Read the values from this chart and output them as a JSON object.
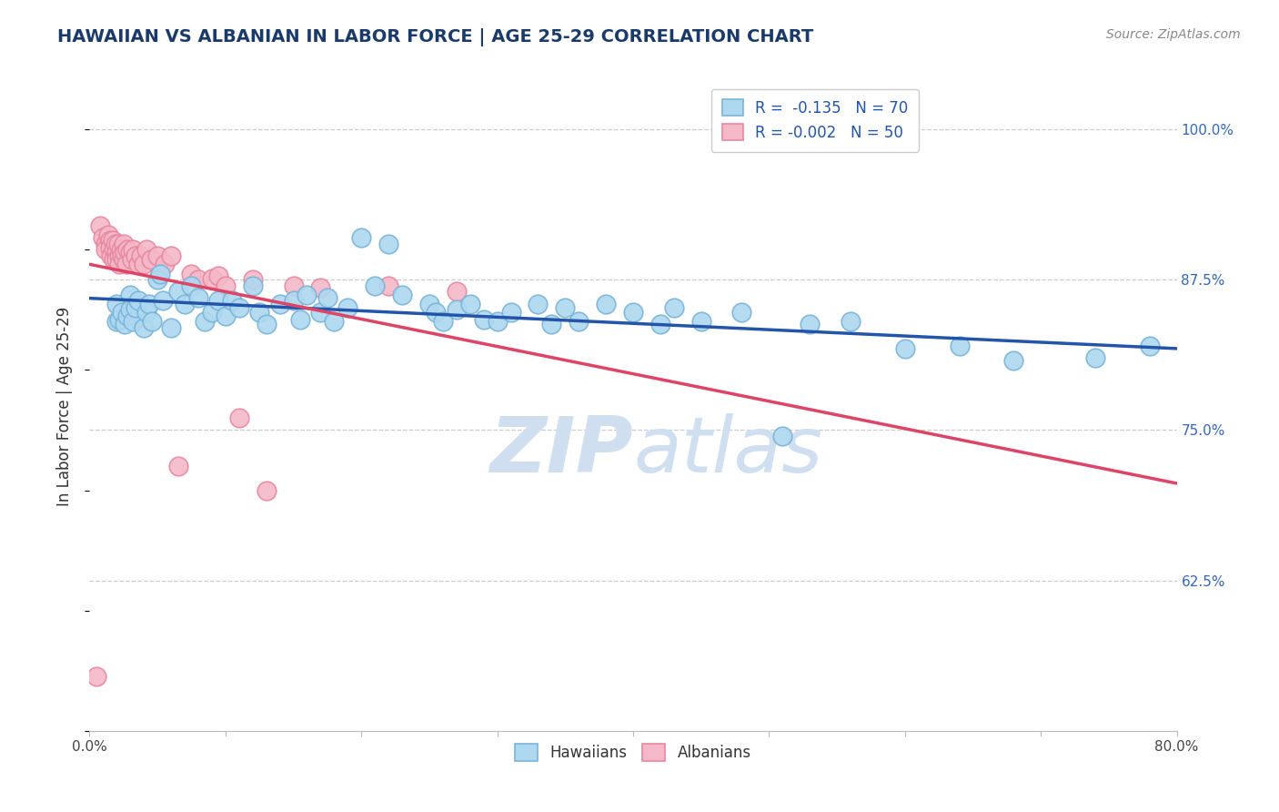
{
  "title": "HAWAIIAN VS ALBANIAN IN LABOR FORCE | AGE 25-29 CORRELATION CHART",
  "source": "Source: ZipAtlas.com",
  "ylabel": "In Labor Force | Age 25-29",
  "x_min": 0.0,
  "x_max": 0.8,
  "y_min": 0.5,
  "y_max": 1.04,
  "x_ticks": [
    0.0,
    0.1,
    0.2,
    0.3,
    0.4,
    0.5,
    0.6,
    0.7,
    0.8
  ],
  "x_tick_labels": [
    "0.0%",
    "",
    "",
    "",
    "",
    "",
    "",
    "",
    "80.0%"
  ],
  "y_ticks": [
    0.625,
    0.75,
    0.875,
    1.0
  ],
  "y_tick_labels": [
    "62.5%",
    "75.0%",
    "87.5%",
    "100.0%"
  ],
  "hawaiian_color": "#add8f0",
  "albanian_color": "#f4b8c8",
  "hawaiian_edge": "#7ab4d8",
  "albanian_edge": "#e888a0",
  "trend_blue": "#2255aa",
  "trend_pink": "#dd4466",
  "legend_label_hawaiian": "R =  -0.135   N = 70",
  "legend_label_albanian": "R = -0.002   N = 50",
  "title_color": "#1a3a6a",
  "source_color": "#888888",
  "axis_label_color": "#333333",
  "tick_color_right": "#3366bb",
  "grid_color": "#cccccc",
  "watermark_color": "#d0dff0",
  "background_color": "#ffffff",
  "hawaiian_x": [
    0.02,
    0.02,
    0.022,
    0.024,
    0.026,
    0.028,
    0.03,
    0.03,
    0.032,
    0.034,
    0.036,
    0.04,
    0.042,
    0.044,
    0.046,
    0.05,
    0.052,
    0.054,
    0.06,
    0.065,
    0.07,
    0.075,
    0.08,
    0.085,
    0.09,
    0.095,
    0.1,
    0.105,
    0.11,
    0.12,
    0.125,
    0.13,
    0.14,
    0.15,
    0.155,
    0.16,
    0.17,
    0.175,
    0.18,
    0.19,
    0.2,
    0.21,
    0.22,
    0.23,
    0.25,
    0.255,
    0.26,
    0.27,
    0.28,
    0.29,
    0.3,
    0.31,
    0.33,
    0.34,
    0.35,
    0.36,
    0.38,
    0.4,
    0.42,
    0.43,
    0.45,
    0.48,
    0.51,
    0.53,
    0.56,
    0.6,
    0.64,
    0.68,
    0.74,
    0.78
  ],
  "hawaiian_y": [
    0.84,
    0.855,
    0.842,
    0.848,
    0.838,
    0.845,
    0.862,
    0.85,
    0.84,
    0.852,
    0.858,
    0.835,
    0.848,
    0.855,
    0.84,
    0.875,
    0.88,
    0.858,
    0.835,
    0.865,
    0.855,
    0.87,
    0.86,
    0.84,
    0.848,
    0.858,
    0.845,
    0.858,
    0.852,
    0.87,
    0.848,
    0.838,
    0.855,
    0.858,
    0.842,
    0.862,
    0.848,
    0.86,
    0.84,
    0.852,
    0.91,
    0.87,
    0.905,
    0.862,
    0.855,
    0.848,
    0.84,
    0.85,
    0.855,
    0.842,
    0.84,
    0.848,
    0.855,
    0.838,
    0.852,
    0.84,
    0.855,
    0.848,
    0.838,
    0.852,
    0.84,
    0.848,
    0.745,
    0.838,
    0.84,
    0.818,
    0.82,
    0.808,
    0.81,
    0.82
  ],
  "albanian_x": [
    0.005,
    0.008,
    0.01,
    0.012,
    0.012,
    0.014,
    0.015,
    0.015,
    0.016,
    0.017,
    0.018,
    0.018,
    0.019,
    0.02,
    0.02,
    0.021,
    0.022,
    0.022,
    0.023,
    0.024,
    0.025,
    0.025,
    0.026,
    0.027,
    0.028,
    0.03,
    0.031,
    0.032,
    0.034,
    0.036,
    0.038,
    0.04,
    0.042,
    0.045,
    0.05,
    0.055,
    0.06,
    0.065,
    0.075,
    0.08,
    0.09,
    0.095,
    0.1,
    0.11,
    0.12,
    0.13,
    0.15,
    0.17,
    0.22,
    0.27
  ],
  "albanian_y": [
    0.545,
    0.92,
    0.91,
    0.905,
    0.9,
    0.912,
    0.908,
    0.902,
    0.895,
    0.908,
    0.9,
    0.892,
    0.905,
    0.898,
    0.892,
    0.905,
    0.895,
    0.888,
    0.9,
    0.895,
    0.892,
    0.905,
    0.898,
    0.888,
    0.9,
    0.898,
    0.892,
    0.9,
    0.895,
    0.888,
    0.895,
    0.888,
    0.9,
    0.892,
    0.895,
    0.888,
    0.895,
    0.72,
    0.88,
    0.875,
    0.876,
    0.878,
    0.87,
    0.76,
    0.875,
    0.7,
    0.87,
    0.868,
    0.87,
    0.865
  ]
}
